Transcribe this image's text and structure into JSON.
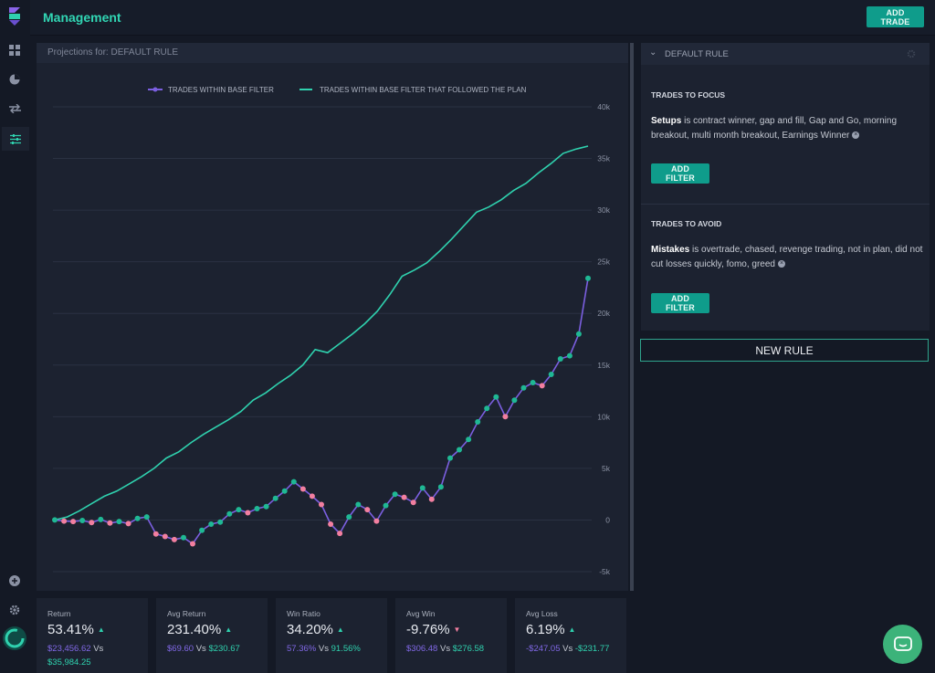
{
  "app": {
    "title": "Management",
    "add_trade": "ADD TRADE"
  },
  "colors": {
    "accent": "#2fd1ae",
    "base_series": "#7b5fe0",
    "win": "#1fb894",
    "loss": "#f27fa0"
  },
  "sidebar": {
    "icons": [
      "dashboard-icon",
      "reports-icon",
      "trades-icon",
      "management-icon",
      "add-icon",
      "settings-icon",
      "progress-icon"
    ]
  },
  "chart_panel": {
    "header": "Projections for: DEFAULT RULE",
    "legend": [
      "TRADES WITHIN BASE FILTER",
      "TRADES WITHIN BASE FILTER THAT FOLLOWED THE PLAN"
    ],
    "y_ticks": [
      "40k",
      "35k",
      "30k",
      "25k",
      "20k",
      "15k",
      "10k",
      "5k",
      "0",
      "-5k"
    ]
  },
  "chart_data": {
    "type": "line",
    "ylim": [
      -5000,
      40000
    ],
    "grid": true,
    "legend_position": "top-center",
    "series": [
      {
        "name": "TRADES WITHIN BASE FILTER",
        "color": "#7b5fe0",
        "values": [
          0,
          -100,
          -150,
          -50,
          -250,
          50,
          -300,
          -150,
          -350,
          150,
          300,
          -1350,
          -1600,
          -1900,
          -1700,
          -2300,
          -1000,
          -400,
          -200,
          600,
          1000,
          700,
          1100,
          1300,
          2100,
          2800,
          3700,
          3000,
          2300,
          1500,
          -400,
          -1300,
          300,
          1500,
          1000,
          -100,
          1400,
          2500,
          2200,
          1700,
          3100,
          2000,
          3200,
          6000,
          6800,
          7800,
          9500,
          10800,
          11900,
          10000,
          11600,
          12800,
          13300,
          13000,
          14100,
          15600,
          15900,
          18000,
          23400
        ]
      },
      {
        "name": "TRADES WITHIN BASE FILTER THAT FOLLOWED THE PLAN",
        "color": "#2fd1ae",
        "values": [
          0,
          300,
          900,
          1600,
          2300,
          2800,
          3500,
          4200,
          5000,
          6000,
          6600,
          7500,
          8300,
          9000,
          9700,
          10500,
          11600,
          12300,
          13200,
          14000,
          15000,
          16500,
          16200,
          17100,
          18000,
          19000,
          20200,
          21800,
          23600,
          24200,
          24900,
          26000,
          27200,
          28500,
          29800,
          30300,
          31000,
          31900,
          32600,
          33600,
          34500,
          35500,
          35900,
          36200
        ]
      }
    ]
  },
  "right_panel": {
    "header": "DEFAULT RULE",
    "focus_label": "TRADES TO FOCUS",
    "setups_key": "Setups",
    "setups_text": " is contract winner, gap and fill, Gap and Go, morning breakout, multi month breakout, Earnings Winner",
    "avoid_label": "TRADES TO AVOID",
    "mistakes_key": "Mistakes",
    "mistakes_text": " is overtrade, chased, revenge trading, not in plan, did not cut losses quickly, fomo, greed",
    "add_filter": "ADD FILTER",
    "new_rule": "NEW RULE"
  },
  "stats": [
    {
      "label": "Return",
      "value": "53.41%",
      "trend": "up",
      "a": "$23,456.62",
      "vs": "Vs",
      "b": "$35,984.25"
    },
    {
      "label": "Avg Return",
      "value": "231.40%",
      "trend": "up",
      "a": "$69.60",
      "vs": "Vs",
      "b": "$230.67"
    },
    {
      "label": "Win Ratio",
      "value": "34.20%",
      "trend": "up",
      "a": "57.36%",
      "vs": "Vs",
      "b": "91.56%"
    },
    {
      "label": "Avg Win",
      "value": "-9.76%",
      "trend": "down",
      "a": "$306.48",
      "vs": "Vs",
      "b": "$276.58"
    },
    {
      "label": "Avg Loss",
      "value": "6.19%",
      "trend": "up",
      "a": "-$247.05",
      "vs": "Vs",
      "b": "-$231.77"
    }
  ]
}
